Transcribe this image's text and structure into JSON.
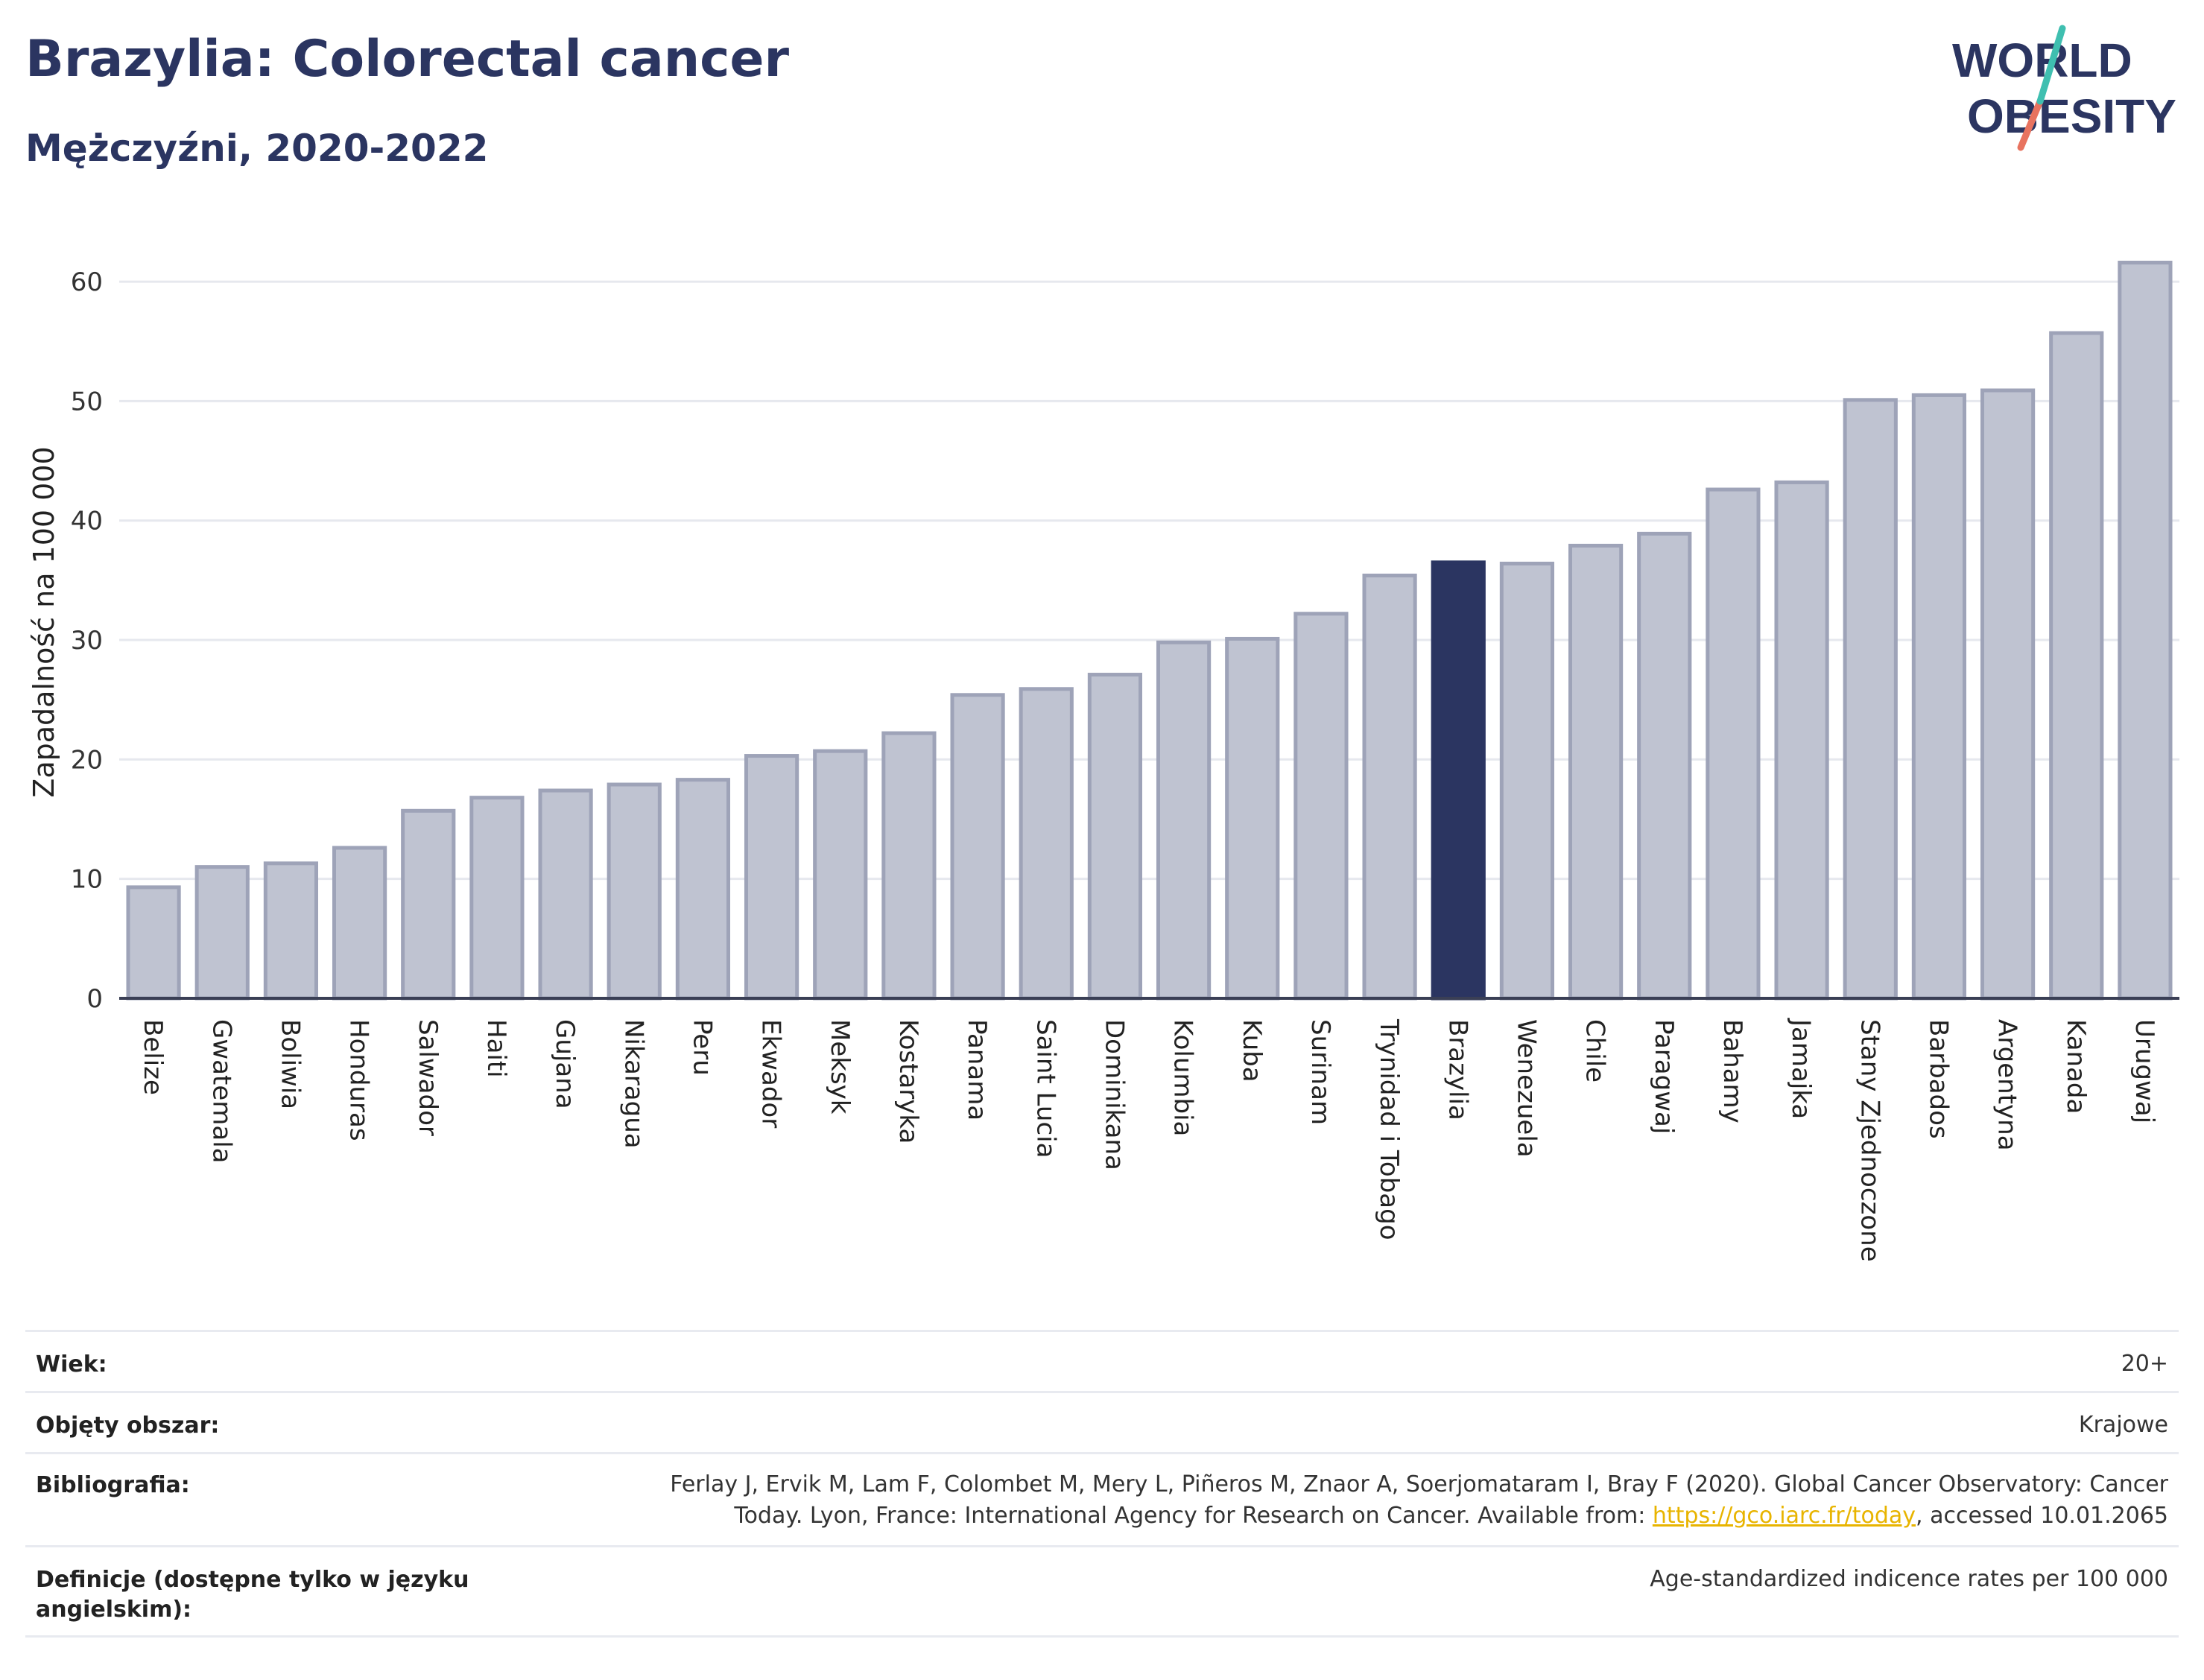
{
  "header": {
    "title": "Brazylia: Colorectal cancer",
    "subtitle": "Mężczyźni, 2020-2022"
  },
  "logo": {
    "line1": "WORLD",
    "line2": "OBESITY"
  },
  "chart_data": {
    "type": "bar",
    "ylabel": "Zapadalność na 100 000",
    "xlabel": "",
    "ylim": [
      0,
      63
    ],
    "yticks": [
      0,
      10,
      20,
      30,
      40,
      50,
      60
    ],
    "grid": true,
    "highlight": "Brazylia",
    "colors": {
      "bar": "#bfc3d1",
      "bar_edge": "#9ea3b8",
      "highlight": "#2b3561",
      "axis": "#3a3f55",
      "grid": "#e6e8ee"
    },
    "categories": [
      "Belize",
      "Gwatemala",
      "Boliwia",
      "Honduras",
      "Salwador",
      "Haiti",
      "Gujana",
      "Nikaragua",
      "Peru",
      "Ekwador",
      "Meksyk",
      "Kostaryka",
      "Panama",
      "Saint Lucia",
      "Dominikana",
      "Kolumbia",
      "Kuba",
      "Surinam",
      "Trynidad i Tobago",
      "Brazylia",
      "Wenezuela",
      "Chile",
      "Paragwaj",
      "Bahamy",
      "Jamajka",
      "Stany Zjednoczone",
      "Barbados",
      "Argentyna",
      "Kanada",
      "Urugwaj"
    ],
    "values": [
      9.3,
      11.0,
      11.3,
      12.6,
      15.7,
      16.8,
      17.4,
      17.9,
      18.3,
      20.3,
      20.7,
      22.2,
      25.4,
      25.9,
      27.1,
      29.8,
      30.1,
      32.2,
      35.4,
      36.5,
      36.4,
      37.9,
      38.9,
      42.6,
      43.2,
      50.1,
      50.5,
      50.9,
      55.7,
      61.6
    ]
  },
  "meta": {
    "age_label": "Wiek:",
    "age_value": "20+",
    "coverage_label": "Objęty obszar:",
    "coverage_value": "Krajowe",
    "biblio_label": "Bibliografia:",
    "biblio_line1": "Ferlay J, Ervik M, Lam F, Colombet M, Mery L, Piñeros M, Znaor A, Soerjomataram I, Bray F (2020). Global Cancer Observatory: Cancer",
    "biblio_line2_pre": "Today. Lyon, France: International Agency for Research on Cancer. Available from: ",
    "biblio_link": "https://gco.iarc.fr/today",
    "biblio_line2_post": ", accessed 10.01.2065",
    "def_label": "Definicje (dostępne tylko w języku angielskim):",
    "def_value": "Age-standardized indicence rates per 100 000"
  }
}
